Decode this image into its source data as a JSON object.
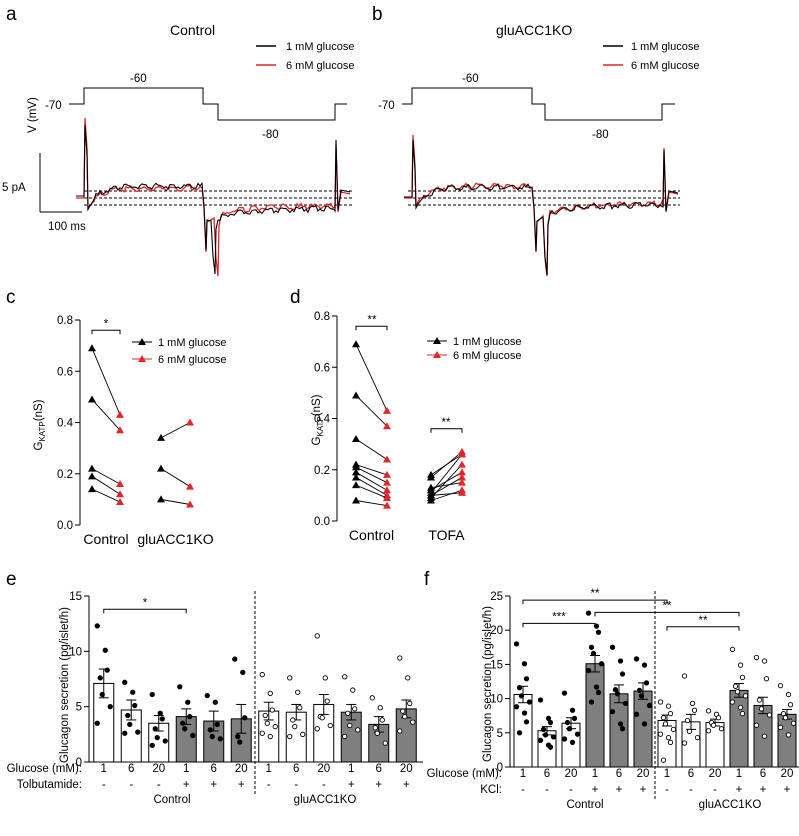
{
  "colors": {
    "black": "#000000",
    "red": "#e0262b",
    "bar_gray": "#7f7f7f",
    "bar_white": "#ffffff"
  },
  "panels": {
    "a": {
      "label": "a",
      "title": "Control",
      "legend": [
        "1 mM glucose",
        "6 mM glucose"
      ],
      "voltage_axis": "V (mV)",
      "v_hold": "-70",
      "v_step1": "-60",
      "v_step2": "-80",
      "scale_current": "5 pA",
      "scale_time": "100  ms"
    },
    "b": {
      "label": "b",
      "title": "gluACC1KO",
      "legend": [
        "1 mM glucose",
        "6 mM glucose"
      ],
      "v_hold": "-70",
      "v_step1": "-60",
      "v_step2": "-80"
    },
    "c": {
      "label": "c",
      "ylabel_main": "G",
      "ylabel_sub": "KATP",
      "ylabel_unit": "(nS)",
      "legend": [
        "1 mM glucose",
        "6 mM glucose"
      ],
      "sig": "*"
    },
    "d": {
      "label": "d",
      "ylabel_main": "G",
      "ylabel_sub": "KATP",
      "ylabel_unit": "(nS)",
      "legend": [
        "1 mM glucose",
        "6 mM glucose"
      ],
      "sig1": "**",
      "sig2": "**"
    },
    "e": {
      "label": "e",
      "ylabel": "Glucagon secretion (pg/islet/h)",
      "row1_label": "Glucose (mM):",
      "row2_label": "Tolbutamide:",
      "group1": "Control",
      "group2": "gluACC1KO",
      "sig": "*"
    },
    "f": {
      "label": "f",
      "ylabel": "Glucagon secretion (pg/islet/h)",
      "row1_label": "Glucose (mM):",
      "row2_label": "KCl:",
      "group1": "Control",
      "group2": "gluACC1KO",
      "sigs": [
        "**",
        "***",
        "**",
        "**"
      ]
    }
  },
  "chart_data": [
    {
      "panel": "a",
      "type": "line",
      "title": "Control",
      "series": [
        {
          "name": "1 mM glucose"
        },
        {
          "name": "6 mM glucose"
        }
      ],
      "voltage_protocol_mV": [
        -70,
        -60,
        -70,
        -80,
        -70
      ]
    },
    {
      "panel": "b",
      "type": "line",
      "title": "gluACC1KO",
      "series": [
        {
          "name": "1 mM glucose"
        },
        {
          "name": "6 mM glucose"
        }
      ],
      "voltage_protocol_mV": [
        -70,
        -60,
        -70,
        -80,
        -70
      ]
    },
    {
      "panel": "c",
      "type": "scatter",
      "ylabel": "GKATP(nS)",
      "ylim": [
        0,
        0.8
      ],
      "yticks": [
        "0.0",
        "0.2",
        "0.4",
        "0.6",
        "0.8"
      ],
      "categories": [
        "Control",
        "gluACC1KO"
      ],
      "pairs": {
        "Control": [
          [
            0.69,
            0.43
          ],
          [
            0.49,
            0.37
          ],
          [
            0.22,
            0.16
          ],
          [
            0.19,
            0.12
          ],
          [
            0.14,
            0.09
          ]
        ],
        "gluACC1KO": [
          [
            0.34,
            0.4
          ],
          [
            0.22,
            0.15
          ],
          [
            0.1,
            0.08
          ]
        ]
      }
    },
    {
      "panel": "d",
      "type": "scatter",
      "ylabel": "GKATP(nS)",
      "ylim": [
        0,
        0.8
      ],
      "yticks": [
        "0.0",
        "0.2",
        "0.4",
        "0.6",
        "0.8"
      ],
      "categories": [
        "Control",
        "TOFA"
      ],
      "pairs": {
        "Control": [
          [
            0.69,
            0.43
          ],
          [
            0.49,
            0.37
          ],
          [
            0.32,
            0.24
          ],
          [
            0.22,
            0.18
          ],
          [
            0.21,
            0.15
          ],
          [
            0.19,
            0.12
          ],
          [
            0.17,
            0.1
          ],
          [
            0.14,
            0.09
          ],
          [
            0.08,
            0.06
          ]
        ],
        "TOFA": [
          [
            0.17,
            0.27
          ],
          [
            0.18,
            0.26
          ],
          [
            0.11,
            0.26
          ],
          [
            0.09,
            0.22
          ],
          [
            0.12,
            0.19
          ],
          [
            0.1,
            0.17
          ],
          [
            0.13,
            0.15
          ],
          [
            0.08,
            0.12
          ],
          [
            0.1,
            0.11
          ]
        ]
      }
    },
    {
      "panel": "e",
      "type": "bar",
      "ylabel": "Glucagon secretion (pg/islet/h)",
      "ylim": [
        0,
        15
      ],
      "yticks": [
        "0",
        "5",
        "10",
        "15"
      ],
      "glucose": [
        "1",
        "6",
        "20",
        "1",
        "6",
        "20",
        "1",
        "6",
        "20",
        "1",
        "6",
        "20"
      ],
      "treatment": [
        "-",
        "-",
        "-",
        "+",
        "+",
        "+",
        "-",
        "-",
        "-",
        "+",
        "+",
        "+"
      ],
      "means": [
        7.1,
        4.7,
        3.5,
        4.1,
        3.7,
        3.9,
        4.6,
        4.5,
        5.2,
        4.5,
        3.4,
        4.8
      ],
      "sems": [
        1.3,
        0.9,
        0.7,
        0.7,
        0.9,
        1.3,
        0.8,
        0.7,
        0.9,
        0.7,
        0.7,
        0.8
      ],
      "points": [
        [
          12.3,
          10.1,
          8.3,
          7.6,
          6.1,
          5.0,
          3.5
        ],
        [
          7.2,
          6.3,
          5.1,
          4.2,
          3.4,
          2.7,
          2.6
        ],
        [
          6.1,
          4.4,
          3.9,
          3.0,
          2.2,
          1.9,
          1.5
        ],
        [
          6.8,
          5.4,
          4.1,
          3.5,
          3.0,
          2.4
        ],
        [
          6.0,
          5.4,
          3.4,
          2.9,
          2.3,
          2.1
        ],
        [
          9.3,
          8.1,
          4.0,
          2.3,
          1.8
        ],
        [
          7.9,
          6.2,
          4.7,
          4.2,
          3.5,
          3.2,
          2.6,
          2.3
        ],
        [
          7.6,
          6.3,
          4.9,
          3.8,
          3.2,
          2.5,
          2.3
        ],
        [
          11.4,
          7.6,
          5.5,
          4.1,
          4.0,
          3.3,
          3.0
        ],
        [
          7.7,
          6.5,
          4.8,
          4.4,
          3.3,
          2.9,
          2.3
        ],
        [
          5.8,
          4.9,
          3.8,
          3.1,
          2.6,
          1.7
        ],
        [
          9.4,
          7.6,
          5.3,
          4.6,
          4.1,
          3.6,
          2.8
        ]
      ]
    },
    {
      "panel": "f",
      "type": "bar",
      "ylabel": "Glucagon secretion (pg/islet/h)",
      "ylim": [
        0,
        25
      ],
      "yticks": [
        "0",
        "5",
        "10",
        "15",
        "20",
        "25"
      ],
      "glucose": [
        "1",
        "6",
        "20",
        "1",
        "6",
        "20",
        "1",
        "6",
        "20",
        "1",
        "6",
        "20"
      ],
      "treatment": [
        "-",
        "-",
        "-",
        "+",
        "+",
        "+",
        "-",
        "-",
        "-",
        "+",
        "+",
        "+"
      ],
      "means": [
        10.6,
        5.3,
        6.4,
        15.1,
        10.7,
        11.1,
        6.8,
        6.6,
        6.5,
        11.2,
        9.0,
        7.7
      ],
      "sems": [
        1.2,
        0.6,
        0.8,
        1.2,
        1.3,
        1.2,
        0.8,
        1.1,
        0.5,
        1.0,
        1.2,
        0.7
      ],
      "points": [
        [
          18.0,
          15.1,
          12.9,
          11.6,
          10.4,
          9.5,
          8.8,
          7.9,
          6.6,
          5.0
        ],
        [
          9.8,
          7.1,
          6.5,
          5.5,
          4.7,
          4.4,
          3.9,
          3.2,
          2.9
        ],
        [
          10.8,
          8.3,
          7.1,
          6.5,
          5.6,
          4.8,
          4.1,
          3.6
        ],
        [
          22.5,
          20.6,
          19.7,
          17.5,
          16.6,
          15.1,
          14.1,
          11.7,
          10.9,
          9.5
        ],
        [
          17.5,
          15.5,
          13.6,
          11.3,
          10.7,
          9.3,
          8.1,
          6.3,
          5.6
        ],
        [
          15.8,
          14.9,
          12.3,
          11.2,
          10.4,
          9.0,
          7.7,
          6.3
        ],
        [
          9.5,
          8.9,
          7.8,
          7.2,
          6.3,
          5.5,
          4.8,
          4.3,
          3.6,
          1.0
        ],
        [
          13.3,
          9.3,
          8.3,
          6.8,
          5.2,
          4.3,
          3.5
        ],
        [
          8.2,
          7.7,
          7.2,
          6.5,
          6.1,
          5.6,
          5.3
        ],
        [
          17.2,
          14.9,
          13.1,
          11.8,
          11.0,
          10.4,
          9.5,
          8.7,
          7.8
        ],
        [
          16.0,
          15.5,
          12.9,
          9.8,
          8.5,
          7.6,
          6.1,
          4.5
        ],
        [
          11.9,
          10.6,
          9.1,
          7.8,
          7.2,
          6.4,
          5.8,
          4.7
        ]
      ]
    }
  ]
}
